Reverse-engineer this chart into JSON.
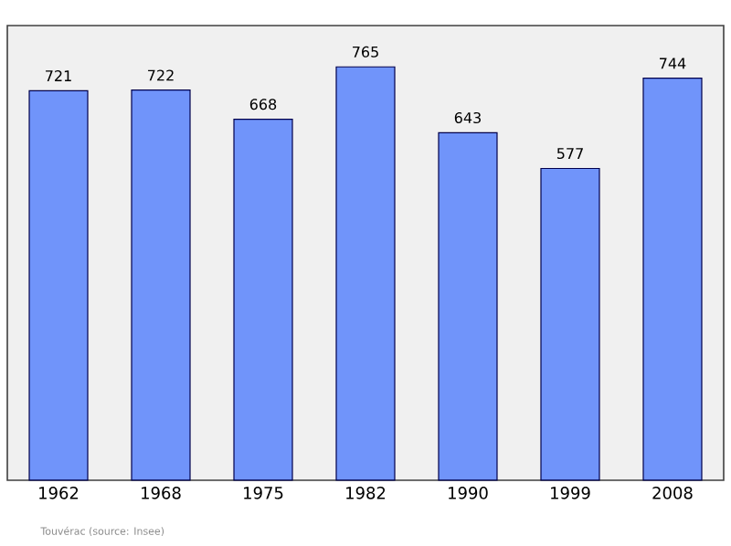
{
  "chart_data": {
    "type": "bar",
    "categories": [
      "1962",
      "1968",
      "1975",
      "1982",
      "1990",
      "1999",
      "2008"
    ],
    "values": [
      721,
      722,
      668,
      765,
      643,
      577,
      744
    ],
    "color": "#7094fa",
    "data_labels": true,
    "annotations": [
      "Touvérac    (source: Insee)"
    ]
  }
}
